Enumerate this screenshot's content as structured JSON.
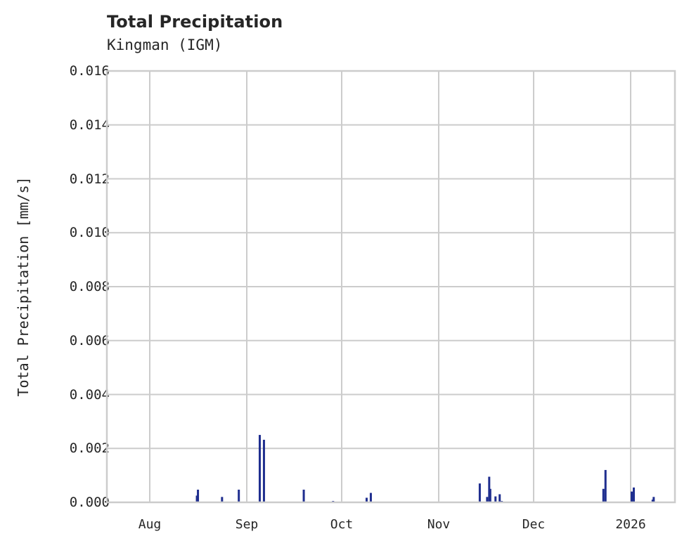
{
  "chart_data": {
    "type": "bar",
    "title": "Total Precipitation",
    "subtitle": "Kingman (IGM)",
    "xlabel": "",
    "ylabel": "Total Precipitation [mm/s]",
    "ylim": [
      0,
      0.016
    ],
    "yticks": [
      "0.000",
      "0.002",
      "0.004",
      "0.006",
      "0.008",
      "0.010",
      "0.012",
      "0.014",
      "0.016"
    ],
    "xticks": [
      "Aug",
      "Sep",
      "Oct",
      "Nov",
      "Dec",
      "2026"
    ],
    "grid": true,
    "legend": null,
    "series": [
      {
        "name": "Total Precipitation",
        "color": "#1f2e8f",
        "points": [
          {
            "x": "Aug 16",
            "value": 0.00025
          },
          {
            "x": "Aug 16",
            "value": 0.00047
          },
          {
            "x": "Aug 24",
            "value": 0.0002
          },
          {
            "x": "Aug 29",
            "value": 0.00047
          },
          {
            "x": "Sep 05",
            "value": 0.0025
          },
          {
            "x": "Sep 06",
            "value": 0.00232
          },
          {
            "x": "Sep 19",
            "value": 0.00047
          },
          {
            "x": "Sep 28",
            "value": 5e-05
          },
          {
            "x": "Oct 09",
            "value": 0.00017
          },
          {
            "x": "Oct 10",
            "value": 0.00035
          },
          {
            "x": "Nov 14",
            "value": 0.0007
          },
          {
            "x": "Nov 16",
            "value": 0.0002
          },
          {
            "x": "Nov 17",
            "value": 0.00095
          },
          {
            "x": "Nov 17",
            "value": 0.0005
          },
          {
            "x": "Nov 19",
            "value": 0.00022
          },
          {
            "x": "Nov 20",
            "value": 0.0003
          },
          {
            "x": "Nov 21",
            "value": 5e-05
          },
          {
            "x": "Dec 23",
            "value": 0.0005
          },
          {
            "x": "Dec 24",
            "value": 0.0012
          },
          {
            "x": "Jan 01",
            "value": 0.0004
          },
          {
            "x": "Jan 02",
            "value": 0.00055
          },
          {
            "x": "Jan 08",
            "value": 0.0002
          },
          {
            "x": "Jan 08",
            "value": 0.0001
          }
        ]
      }
    ]
  },
  "header": {
    "title": "Total Precipitation",
    "subtitle": "Kingman (IGM)"
  },
  "axes": {
    "ylabel": "Total Precipitation [mm/s]",
    "yticks": [
      "0.000",
      "0.002",
      "0.004",
      "0.006",
      "0.008",
      "0.010",
      "0.012",
      "0.014",
      "0.016"
    ],
    "xticks": [
      "Aug",
      "Sep",
      "Oct",
      "Nov",
      "Dec",
      "2026"
    ]
  },
  "colors": {
    "bar": "#1f2e8f",
    "grid": "#cccccc",
    "text": "#262626"
  }
}
